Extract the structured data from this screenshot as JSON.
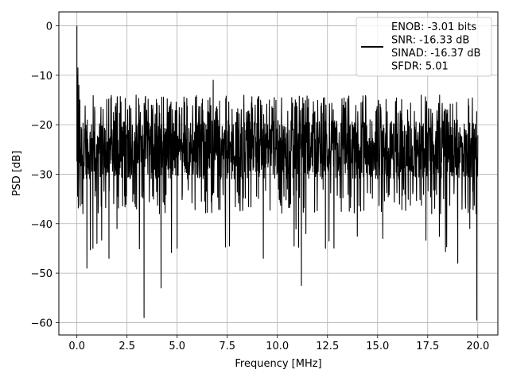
{
  "chart_data": {
    "type": "line",
    "title": "",
    "xlabel": "Frequency [MHz]",
    "ylabel": "PSD [dB]",
    "xlim": [
      -0.9,
      21.0
    ],
    "ylim": [
      -62.5,
      2.8
    ],
    "xticks": [
      0.0,
      2.5,
      5.0,
      7.5,
      10.0,
      12.5,
      15.0,
      17.5,
      20.0
    ],
    "xtick_labels": [
      "0.0",
      "2.5",
      "5.0",
      "7.5",
      "10.0",
      "12.5",
      "15.0",
      "17.5",
      "20.0"
    ],
    "yticks": [
      0,
      -10,
      -20,
      -30,
      -40,
      -50,
      -60
    ],
    "ytick_labels": [
      "0",
      "−10",
      "−20",
      "−30",
      "−40",
      "−50",
      "−60"
    ],
    "grid": true,
    "legend_position": "top-right",
    "legend_lines": [
      "ENOB: -3.01 bits",
      "SNR: -16.33 dB",
      "SINAD: -16.37 dB",
      "SFDR: 5.01"
    ],
    "series": [
      {
        "color": "#000000",
        "noise_floor_db": -25,
        "noise_band_db": [
          -38,
          -18
        ],
        "x": [
          0.0,
          0.02,
          0.05,
          0.1,
          0.15,
          0.25,
          0.3,
          0.45,
          0.5,
          0.6,
          0.8,
          1.0,
          1.6,
          2.0,
          3.35,
          4.2,
          5.0,
          6.0,
          6.8,
          8.0,
          9.3,
          10.5,
          11.2,
          12.4,
          13.5,
          15.0,
          16.5,
          17.7,
          19.0,
          19.6,
          19.95,
          20.0
        ],
        "y": [
          0,
          -10,
          -8.5,
          -12,
          -15,
          -36,
          -38,
          -30,
          -49,
          -29,
          -45,
          -44,
          -47,
          -41,
          -59,
          -53,
          -45,
          -28,
          -11,
          -25,
          -47,
          -33,
          -52.5,
          -45,
          -29,
          -25,
          -17,
          -38,
          -48,
          -41,
          -59.5,
          -24
        ]
      }
    ]
  }
}
